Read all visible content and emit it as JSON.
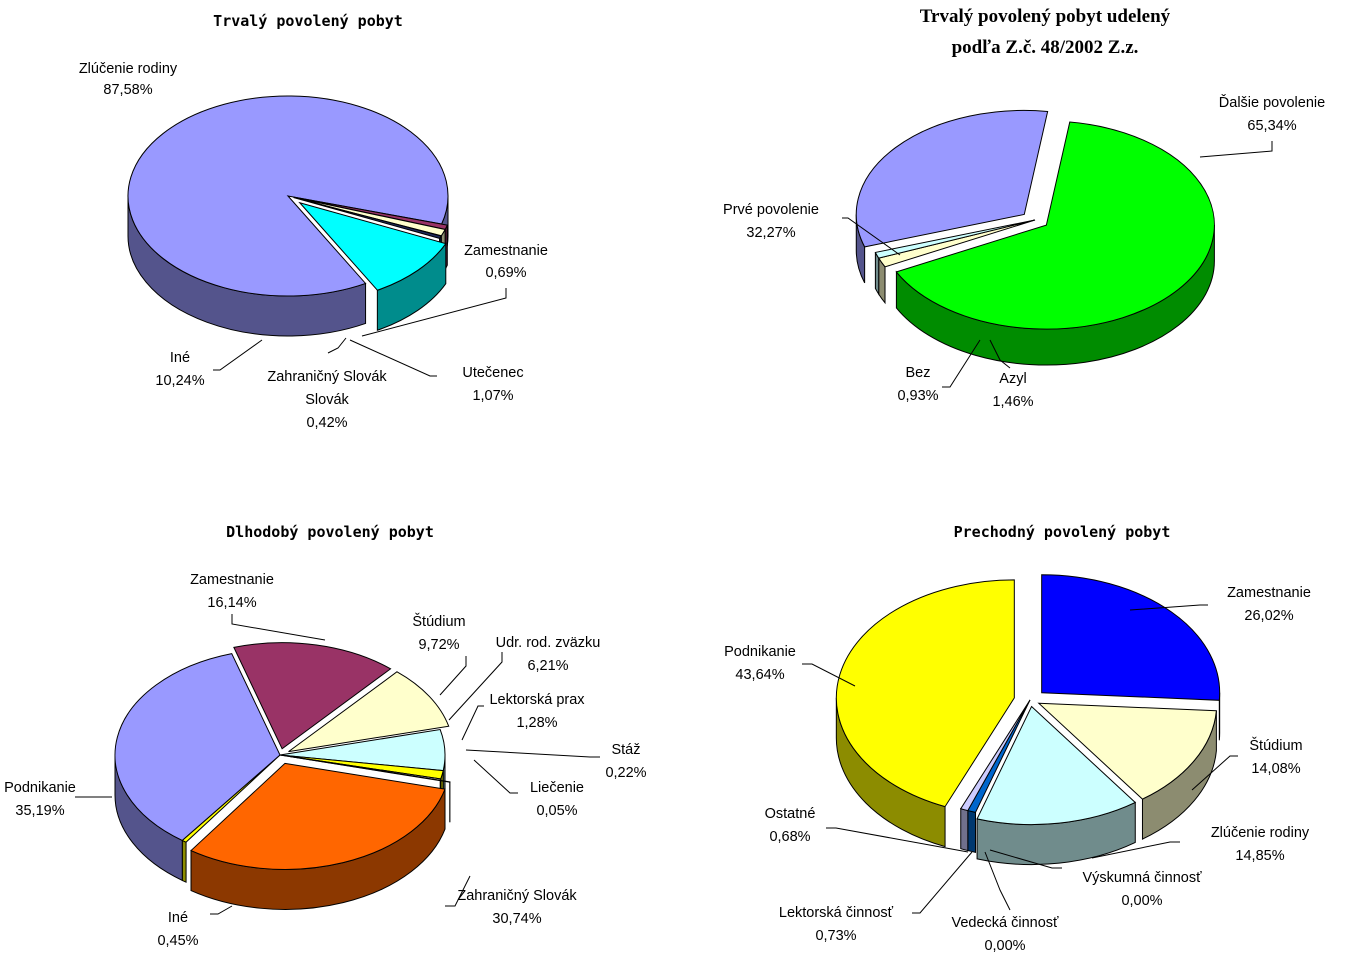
{
  "chart_data": [
    {
      "type": "pie",
      "title": "Trvalý povolený pobyt",
      "slices": [
        {
          "name": "Zlúčenie rodiny",
          "value": 87.58,
          "label": "87,58%",
          "color": "#9999ff"
        },
        {
          "name": "Zamestnanie",
          "value": 0.69,
          "label": "0,69%",
          "color": "#993366"
        },
        {
          "name": "Utečenec",
          "value": 1.07,
          "label": "1,07%",
          "color": "#ffffcc"
        },
        {
          "name": "Zahraničný Slovák",
          "value": 0.42,
          "label": "0,42%",
          "color": "#1f2a5a"
        },
        {
          "name": "Iné",
          "value": 10.24,
          "label": "10,24%",
          "color": "#00ffff"
        }
      ]
    },
    {
      "type": "pie",
      "title": "Trvalý povolený pobyt udelený podľa Z.č. 48/2002 Z.z.",
      "title_lines": [
        "Trvalý povolený pobyt udelený",
        "podľa Z.č. 48/2002 Z.z."
      ],
      "slices": [
        {
          "name": "Ďalšie povolenie",
          "value": 65.34,
          "label": "65,34%",
          "color": "#00ff00"
        },
        {
          "name": "Azyl",
          "value": 1.46,
          "label": "1,46%",
          "color": "#ffffcc"
        },
        {
          "name": "Bez",
          "value": 0.93,
          "label": "0,93%",
          "color": "#ccffff"
        },
        {
          "name": "Prvé povolenie",
          "value": 32.27,
          "label": "32,27%",
          "color": "#9999ff"
        }
      ]
    },
    {
      "type": "pie",
      "title": "Dlhodobý povolený pobyt",
      "slices": [
        {
          "name": "Zamestnanie",
          "value": 16.14,
          "label": "16,14%",
          "color": "#993366"
        },
        {
          "name": "Štúdium",
          "value": 9.72,
          "label": "9,72%",
          "color": "#ffffcc"
        },
        {
          "name": "Udr. rod. zväzku",
          "value": 6.21,
          "label": "6,21%",
          "color": "#ccffff"
        },
        {
          "name": "Lektorská prax",
          "value": 1.28,
          "label": "1,28%",
          "color": "#ffff00"
        },
        {
          "name": "Stáž",
          "value": 0.22,
          "label": "0,22%",
          "color": "#ffffff"
        },
        {
          "name": "Liečenie",
          "value": 0.05,
          "label": "0,05%",
          "color": "#003366"
        },
        {
          "name": "Zahraničný Slovák",
          "value": 30.74,
          "label": "30,74%",
          "color": "#ff6600"
        },
        {
          "name": "Iné",
          "value": 0.45,
          "label": "0,45%",
          "color": "#ffff00"
        },
        {
          "name": "Podnikanie",
          "value": 35.19,
          "label": "35,19%",
          "color": "#9999ff"
        }
      ]
    },
    {
      "type": "pie",
      "title": "Prechodný povolený pobyt",
      "slices": [
        {
          "name": "Zamestnanie",
          "value": 26.02,
          "label": "26,02%",
          "color": "#0000ff"
        },
        {
          "name": "Štúdium",
          "value": 14.08,
          "label": "14,08%",
          "color": "#ffffcc"
        },
        {
          "name": "Zlúčenie rodiny",
          "value": 14.85,
          "label": "14,85%",
          "color": "#ccffff"
        },
        {
          "name": "Výskumná činnosť",
          "value": 0.0,
          "label": "0,00%",
          "color": "#660066"
        },
        {
          "name": "Vedecká činnosť",
          "value": 0.0,
          "label": "0,00%",
          "color": "#ff8080"
        },
        {
          "name": "Lektorská činnosť",
          "value": 0.73,
          "label": "0,73%",
          "color": "#0066cc"
        },
        {
          "name": "Ostatné",
          "value": 0.68,
          "label": "0,68%",
          "color": "#ccccff"
        },
        {
          "name": "Podnikanie",
          "value": 43.64,
          "label": "43,64%",
          "color": "#ffff00"
        }
      ]
    }
  ]
}
